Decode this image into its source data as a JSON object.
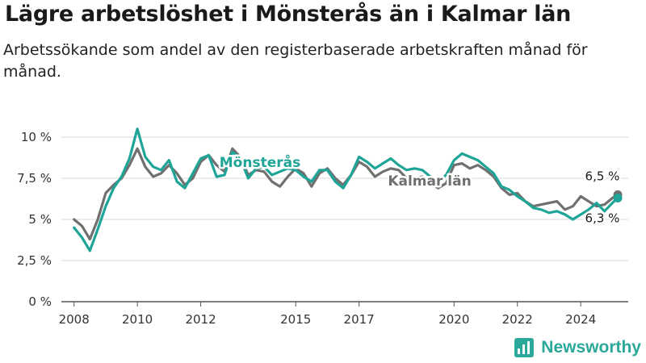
{
  "title": "Lägre arbetslöshet i Mönsterås än i Kalmar län",
  "subtitle": "Arbetssökande som andel av den registerbaserade arbetskraften månad för månad.",
  "brand": {
    "name": "Newsworthy",
    "icon": "newsworthy-chart-logo-icon",
    "color": "#2aa89a"
  },
  "chart_data": {
    "type": "line",
    "title": "Lägre arbetslöshet i Mönsterås än i Kalmar län",
    "xlabel": "",
    "ylabel": "",
    "xlim": [
      2007.6,
      2025.5
    ],
    "ylim": [
      0,
      10
    ],
    "grid": true,
    "y_ticks": [
      0,
      2.5,
      5,
      7.5,
      10
    ],
    "y_tick_labels": [
      "0 %",
      "2,5 %",
      "5 %",
      "7,5 %",
      "10 %"
    ],
    "x_ticks": [
      2008,
      2010,
      2012,
      2015,
      2017,
      2020,
      2022,
      2024
    ],
    "x_tick_labels": [
      "2008",
      "2010",
      "2012",
      "2015",
      "2017",
      "2020",
      "2022",
      "2024"
    ],
    "series": [
      {
        "name": "Kalmar län",
        "color": "#707070",
        "end_label": "6,5 %",
        "x": [
          2008.0,
          2008.25,
          2008.5,
          2008.75,
          2009.0,
          2009.25,
          2009.5,
          2009.75,
          2010.0,
          2010.25,
          2010.5,
          2010.75,
          2011.0,
          2011.25,
          2011.5,
          2011.75,
          2012.0,
          2012.25,
          2012.5,
          2012.75,
          2013.0,
          2013.25,
          2013.5,
          2013.75,
          2014.0,
          2014.25,
          2014.5,
          2014.75,
          2015.0,
          2015.25,
          2015.5,
          2015.75,
          2016.0,
          2016.25,
          2016.5,
          2016.75,
          2017.0,
          2017.25,
          2017.5,
          2017.75,
          2018.0,
          2018.25,
          2018.5,
          2018.75,
          2019.0,
          2019.25,
          2019.5,
          2019.75,
          2020.0,
          2020.25,
          2020.5,
          2020.75,
          2021.0,
          2021.25,
          2021.5,
          2021.75,
          2022.0,
          2022.25,
          2022.5,
          2022.75,
          2023.0,
          2023.25,
          2023.5,
          2023.75,
          2024.0,
          2024.25,
          2024.5,
          2024.75,
          2025.0,
          2025.17
        ],
        "values": [
          5.0,
          4.6,
          3.8,
          5.0,
          6.6,
          7.1,
          7.5,
          8.3,
          9.3,
          8.2,
          7.6,
          7.8,
          8.3,
          7.8,
          7.1,
          7.5,
          8.5,
          8.9,
          8.3,
          7.9,
          9.3,
          8.8,
          7.7,
          8.0,
          7.9,
          7.3,
          7.0,
          7.6,
          8.1,
          7.8,
          7.0,
          7.8,
          8.1,
          7.5,
          7.1,
          7.7,
          8.5,
          8.2,
          7.6,
          7.9,
          8.1,
          8.0,
          7.5,
          7.5,
          7.6,
          7.2,
          6.9,
          7.2,
          8.3,
          8.4,
          8.1,
          8.3,
          8.0,
          7.6,
          6.9,
          6.5,
          6.6,
          6.1,
          5.8,
          5.9,
          6.0,
          6.1,
          5.6,
          5.8,
          6.4,
          6.1,
          5.8,
          5.9,
          6.3,
          6.5
        ]
      },
      {
        "name": "Mönsterås",
        "color": "#1fa598",
        "end_label": "6,3 %",
        "x": [
          2008.0,
          2008.25,
          2008.5,
          2008.75,
          2009.0,
          2009.25,
          2009.5,
          2009.75,
          2010.0,
          2010.25,
          2010.5,
          2010.75,
          2011.0,
          2011.25,
          2011.5,
          2011.75,
          2012.0,
          2012.25,
          2012.5,
          2012.75,
          2013.0,
          2013.25,
          2013.5,
          2013.75,
          2014.0,
          2014.25,
          2014.5,
          2014.75,
          2015.0,
          2015.25,
          2015.5,
          2015.75,
          2016.0,
          2016.25,
          2016.5,
          2016.75,
          2017.0,
          2017.25,
          2017.5,
          2017.75,
          2018.0,
          2018.25,
          2018.5,
          2018.75,
          2019.0,
          2019.25,
          2019.5,
          2019.75,
          2020.0,
          2020.25,
          2020.5,
          2020.75,
          2021.0,
          2021.25,
          2021.5,
          2021.75,
          2022.0,
          2022.25,
          2022.5,
          2022.75,
          2023.0,
          2023.25,
          2023.5,
          2023.75,
          2024.0,
          2024.25,
          2024.5,
          2024.75,
          2025.0,
          2025.17
        ],
        "values": [
          4.5,
          3.9,
          3.1,
          4.4,
          5.8,
          6.9,
          7.6,
          8.7,
          10.5,
          8.8,
          8.2,
          8.0,
          8.6,
          7.3,
          6.9,
          7.8,
          8.7,
          8.9,
          7.6,
          7.7,
          9.1,
          8.7,
          7.5,
          8.1,
          8.2,
          7.7,
          7.9,
          8.1,
          8.0,
          7.6,
          7.3,
          8.0,
          8.0,
          7.3,
          6.9,
          7.7,
          8.8,
          8.5,
          8.1,
          8.4,
          8.7,
          8.3,
          8.0,
          8.1,
          8.0,
          7.6,
          7.3,
          7.7,
          8.6,
          9.0,
          8.8,
          8.6,
          8.2,
          7.8,
          7.0,
          6.8,
          6.4,
          6.1,
          5.7,
          5.6,
          5.4,
          5.5,
          5.3,
          5.0,
          5.3,
          5.6,
          6.0,
          5.5,
          6.0,
          6.3
        ]
      }
    ]
  }
}
